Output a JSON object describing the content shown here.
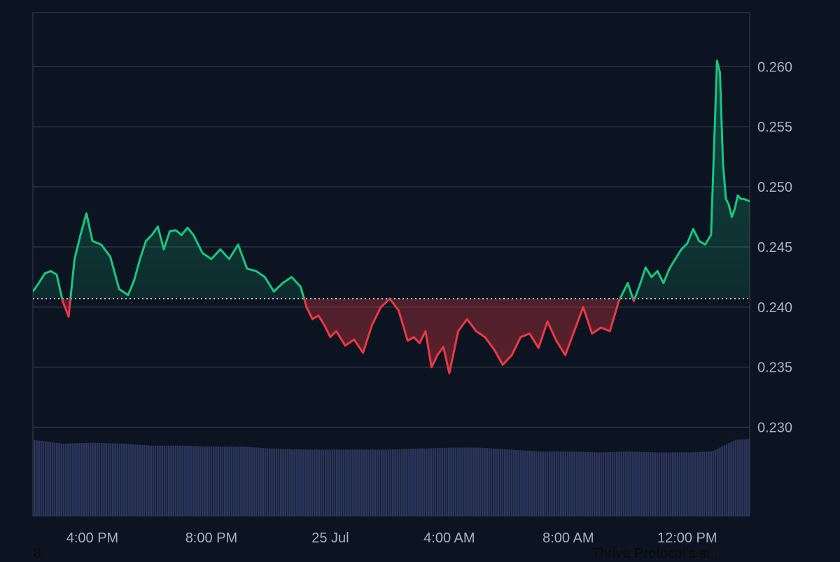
{
  "chart_data": {
    "type": "line",
    "baseline": 0.2407,
    "ylim": [
      0.2245,
      0.2645
    ],
    "yticks": [
      0.23,
      0.235,
      0.24,
      0.245,
      0.25,
      0.255,
      0.26
    ],
    "ytick_labels": [
      "0.230",
      "0.235",
      "0.240",
      "0.245",
      "0.250",
      "0.255",
      "0.260"
    ],
    "xtick_labels": [
      "4:00 PM",
      "8:00 PM",
      "25 Jul",
      "4:00 AM",
      "8:00 AM",
      "12:00 PM"
    ],
    "xtick_hours": [
      4,
      8,
      12,
      16,
      20,
      24
    ],
    "x_range_hours": [
      2.0,
      26.1
    ],
    "series": [
      {
        "x": [
          2.0,
          2.2,
          2.4,
          2.6,
          2.8,
          3.0,
          3.2,
          3.4,
          3.6,
          3.8,
          4.0,
          4.3,
          4.6,
          4.9,
          5.2,
          5.4,
          5.6,
          5.8,
          6.0,
          6.2,
          6.4,
          6.6,
          6.8,
          7.0,
          7.2,
          7.4,
          7.7,
          8.0,
          8.3,
          8.6,
          8.9,
          9.2,
          9.5,
          9.8,
          10.1,
          10.4,
          10.7,
          11.0,
          11.2,
          11.4,
          11.6,
          11.8,
          12.0,
          12.2,
          12.5,
          12.8,
          13.1,
          13.4,
          13.7,
          14.0,
          14.3,
          14.6,
          14.8,
          15.0,
          15.2,
          15.4,
          15.6,
          15.8,
          16.0,
          16.3,
          16.6,
          16.9,
          17.2,
          17.5,
          17.8,
          18.1,
          18.4,
          18.7,
          19.0,
          19.3,
          19.6,
          19.9,
          20.2,
          20.5,
          20.8,
          21.1,
          21.4,
          21.7,
          22.0,
          22.2,
          22.4,
          22.6,
          22.8,
          23.0,
          23.2,
          23.4,
          23.6,
          23.8,
          24.0,
          24.2,
          24.4,
          24.6,
          24.8,
          25.0,
          25.1,
          25.2,
          25.3,
          25.4,
          25.5,
          25.6,
          25.7,
          25.8,
          25.9,
          26.1
        ],
        "y": [
          0.2413,
          0.242,
          0.2428,
          0.243,
          0.2427,
          0.2405,
          0.2392,
          0.244,
          0.246,
          0.2478,
          0.2455,
          0.2452,
          0.2442,
          0.2415,
          0.241,
          0.2422,
          0.244,
          0.2455,
          0.246,
          0.2467,
          0.2448,
          0.2463,
          0.2464,
          0.246,
          0.2466,
          0.246,
          0.2445,
          0.244,
          0.2448,
          0.244,
          0.2452,
          0.2432,
          0.243,
          0.2425,
          0.2413,
          0.242,
          0.2425,
          0.2417,
          0.24,
          0.239,
          0.2393,
          0.2385,
          0.2375,
          0.238,
          0.2368,
          0.2373,
          0.2362,
          0.2385,
          0.24,
          0.2407,
          0.2397,
          0.2372,
          0.2375,
          0.237,
          0.238,
          0.235,
          0.236,
          0.2367,
          0.2345,
          0.238,
          0.239,
          0.238,
          0.2375,
          0.2365,
          0.2352,
          0.236,
          0.2375,
          0.2378,
          0.2366,
          0.2388,
          0.2372,
          0.236,
          0.238,
          0.24,
          0.2378,
          0.2383,
          0.238,
          0.2405,
          0.242,
          0.2405,
          0.2418,
          0.2433,
          0.2425,
          0.243,
          0.242,
          0.2432,
          0.244,
          0.2448,
          0.2453,
          0.2465,
          0.2455,
          0.2452,
          0.246,
          0.2605,
          0.2595,
          0.252,
          0.249,
          0.2485,
          0.2475,
          0.2482,
          0.2493,
          0.249,
          0.249,
          0.2488
        ]
      }
    ],
    "volume": {
      "x": [
        2.0,
        3.0,
        4.0,
        5.0,
        6.0,
        7.0,
        8.0,
        9.0,
        10.0,
        11.0,
        12.0,
        13.0,
        14.0,
        15.0,
        16.0,
        17.0,
        18.0,
        19.0,
        20.0,
        21.0,
        22.0,
        23.0,
        24.0,
        24.8,
        25.2,
        25.6,
        26.1
      ],
      "v": [
        0.78,
        0.74,
        0.75,
        0.74,
        0.72,
        0.72,
        0.71,
        0.71,
        0.69,
        0.68,
        0.68,
        0.68,
        0.68,
        0.69,
        0.7,
        0.7,
        0.68,
        0.66,
        0.66,
        0.65,
        0.66,
        0.65,
        0.65,
        0.66,
        0.72,
        0.78,
        0.79
      ]
    }
  },
  "footer": {
    "left_text": "8",
    "right_text": "Thrive Protocol's st..."
  },
  "colors": {
    "up": "#16c784",
    "down": "#ea3943",
    "grid": "#2a3240",
    "volume": "#2c365a",
    "baseline": "#cfd6e4"
  }
}
